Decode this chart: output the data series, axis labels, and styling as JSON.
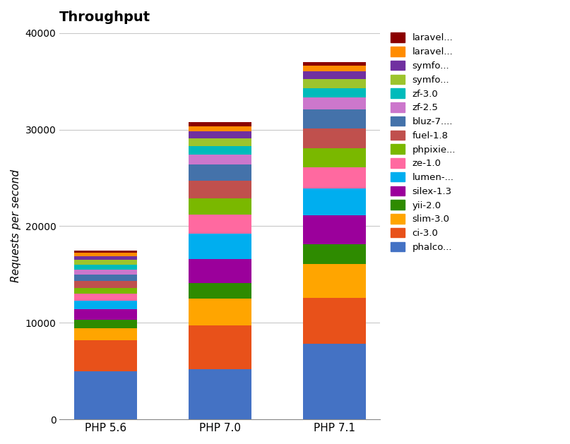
{
  "title": "Throughput",
  "ylabel": "Requests per second",
  "categories": [
    "PHP 5.6",
    "PHP 7.0",
    "PHP 7.1"
  ],
  "frameworks": [
    "phalco...",
    "ci-3.0",
    "slim-3.0",
    "yii-2.0",
    "silex-1.3",
    "lumen-...",
    "ze-1.0",
    "phpixie...",
    "fuel-1.8",
    "bluz-7....",
    "zf-2.5",
    "zf-3.0",
    "symfo...",
    "symfo...",
    "laravel...",
    "laravel..."
  ],
  "colors": [
    "#4472C4",
    "#E8511A",
    "#FFA500",
    "#2E8B00",
    "#9B009B",
    "#00AEEF",
    "#FF69A0",
    "#7AB800",
    "#C0504D",
    "#4472AA",
    "#CC77CC",
    "#00BBBB",
    "#9DC42D",
    "#7030A0",
    "#FF8C00",
    "#8B0000"
  ],
  "values": {
    "PHP 5.6": [
      5000,
      3200,
      1200,
      900,
      1100,
      900,
      700,
      600,
      700,
      700,
      500,
      500,
      500,
      400,
      350,
      250
    ],
    "PHP 7.0": [
      5200,
      4500,
      2800,
      1600,
      2500,
      2600,
      2000,
      1700,
      1800,
      1700,
      1000,
      900,
      800,
      750,
      500,
      400
    ],
    "PHP 7.1": [
      7800,
      4800,
      3500,
      2000,
      3000,
      2800,
      2200,
      2000,
      2000,
      2000,
      1200,
      1000,
      900,
      800,
      600,
      400
    ]
  },
  "ylim": [
    0,
    40000
  ],
  "yticks": [
    0,
    10000,
    20000,
    30000,
    40000
  ],
  "background_color": "#ffffff",
  "grid_color": "#c8c8c8",
  "bar_width": 0.55,
  "title_fontsize": 14,
  "label_fontsize": 11
}
